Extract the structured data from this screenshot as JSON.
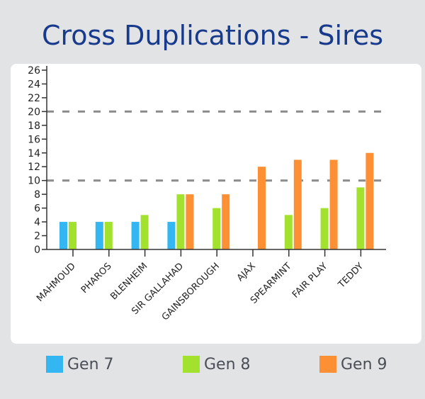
{
  "chart_data": {
    "type": "bar",
    "title": "Cross Duplications - Sires",
    "xlabel": "",
    "ylabel": "",
    "ylim": [
      0,
      26
    ],
    "yticks": [
      "0",
      "2",
      "4",
      "6",
      "8",
      "10",
      "12",
      "14",
      "16",
      "18",
      "20",
      "22",
      "24",
      "26"
    ],
    "reference_lines": [
      10,
      20
    ],
    "categories": [
      "MAHMOUD",
      "PHAROS",
      "BLENHEIM",
      "SIR GALLAHAD",
      "GAINSBOROUGH",
      "AJAX",
      "SPEARMINT",
      "FAIR PLAY",
      "TEDDY"
    ],
    "series": [
      {
        "name": "Gen 7",
        "color": "#33b6f2",
        "values": [
          4,
          4,
          4,
          4,
          null,
          null,
          null,
          null,
          null
        ]
      },
      {
        "name": "Gen 8",
        "color": "#a2e22e",
        "values": [
          4,
          4,
          5,
          8,
          6,
          null,
          5,
          6,
          9
        ]
      },
      {
        "name": "Gen 9",
        "color": "#fd8f35",
        "values": [
          null,
          null,
          null,
          8,
          8,
          12,
          13,
          13,
          14
        ]
      }
    ],
    "legend_position": "bottom"
  }
}
